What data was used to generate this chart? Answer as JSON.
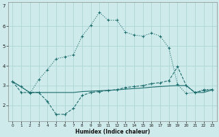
{
  "xlabel": "Humidex (Indice chaleur)",
  "bg_color": "#ceeaea",
  "grid_color": "#b0d8d8",
  "line_color": "#1a6b6b",
  "xlim": [
    -0.5,
    23.5
  ],
  "ylim": [
    1.2,
    7.2
  ],
  "xticks": [
    0,
    1,
    2,
    3,
    4,
    5,
    6,
    7,
    8,
    9,
    10,
    11,
    12,
    13,
    14,
    15,
    16,
    17,
    18,
    19,
    20,
    21,
    22,
    23
  ],
  "yticks": [
    2,
    3,
    4,
    5,
    6
  ],
  "ytick_extra": 7,
  "line1_x": [
    0,
    1,
    2,
    3,
    4,
    5,
    6,
    7,
    8,
    9,
    10,
    11,
    12,
    13,
    14,
    15,
    16,
    17,
    18,
    19,
    20,
    21,
    22,
    23
  ],
  "line1_y": [
    3.2,
    2.95,
    2.6,
    3.3,
    3.8,
    4.35,
    4.45,
    4.55,
    5.5,
    6.05,
    6.7,
    6.3,
    6.3,
    5.7,
    5.55,
    5.5,
    5.65,
    5.5,
    4.9,
    3.05,
    2.6,
    2.65,
    2.8,
    2.8
  ],
  "line2_x": [
    0,
    1,
    2,
    3,
    4,
    5,
    6,
    7,
    8,
    9,
    10,
    11,
    12,
    13,
    14,
    15,
    16,
    17,
    18,
    19,
    20,
    21,
    22,
    23
  ],
  "line2_y": [
    3.2,
    2.65,
    2.65,
    2.65,
    2.2,
    1.55,
    1.55,
    1.85,
    2.5,
    2.65,
    2.7,
    2.75,
    2.8,
    2.9,
    2.95,
    3.0,
    3.1,
    3.15,
    3.25,
    3.95,
    3.0,
    2.65,
    2.75,
    2.8
  ],
  "line3_x": [
    0,
    2,
    3,
    4,
    5,
    6,
    7,
    8,
    9,
    10,
    11,
    12,
    13,
    14,
    15,
    16,
    17,
    18,
    19,
    20,
    21,
    22,
    23
  ],
  "line3_y": [
    3.2,
    2.65,
    2.65,
    2.65,
    2.65,
    2.65,
    2.65,
    2.7,
    2.72,
    2.74,
    2.76,
    2.78,
    2.82,
    2.85,
    2.88,
    2.92,
    2.95,
    2.98,
    3.0,
    3.0,
    2.65,
    2.65,
    2.78
  ]
}
